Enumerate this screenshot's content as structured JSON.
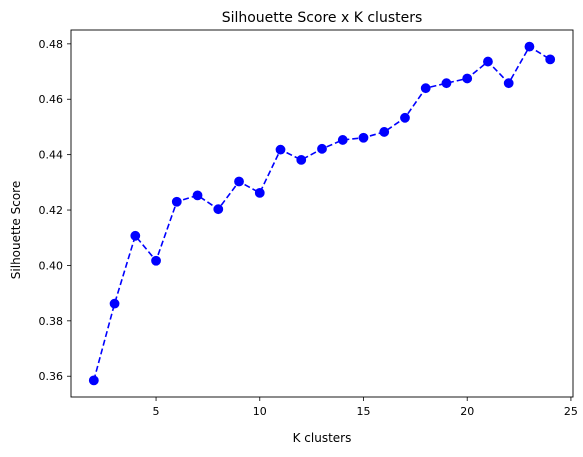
{
  "chart_data": {
    "type": "line",
    "title": "Silhouette Score  x  K clusters",
    "xlabel": "K clusters",
    "ylabel": "Silhouette Score",
    "x": [
      2,
      3,
      4,
      5,
      6,
      7,
      8,
      9,
      10,
      11,
      12,
      13,
      14,
      15,
      16,
      17,
      18,
      19,
      20,
      21,
      22,
      23,
      24
    ],
    "series": [
      {
        "values": [
          0.3585,
          0.3862,
          0.4107,
          0.4017,
          0.423,
          0.4253,
          0.4203,
          0.4303,
          0.4262,
          0.4418,
          0.4381,
          0.4421,
          0.4453,
          0.4461,
          0.4482,
          0.4533,
          0.464,
          0.4658,
          0.4675,
          0.4736,
          0.4658,
          0.479,
          0.4744
        ],
        "color": "#0000ff",
        "line_style": "dashed",
        "marker": "circle"
      }
    ],
    "xlim": [
      0.9,
      25.1
    ],
    "ylim": [
      0.3525,
      0.485
    ],
    "x_ticks": [
      5,
      10,
      15,
      20,
      25
    ],
    "y_ticks": [
      0.36,
      0.38,
      0.4,
      0.42,
      0.44,
      0.46,
      0.48
    ],
    "x_tick_labels": [
      "5",
      "10",
      "15",
      "20",
      "25"
    ],
    "y_tick_labels": [
      "0.36",
      "0.38",
      "0.40",
      "0.42",
      "0.44",
      "0.46",
      "0.48"
    ],
    "grid": false
  }
}
